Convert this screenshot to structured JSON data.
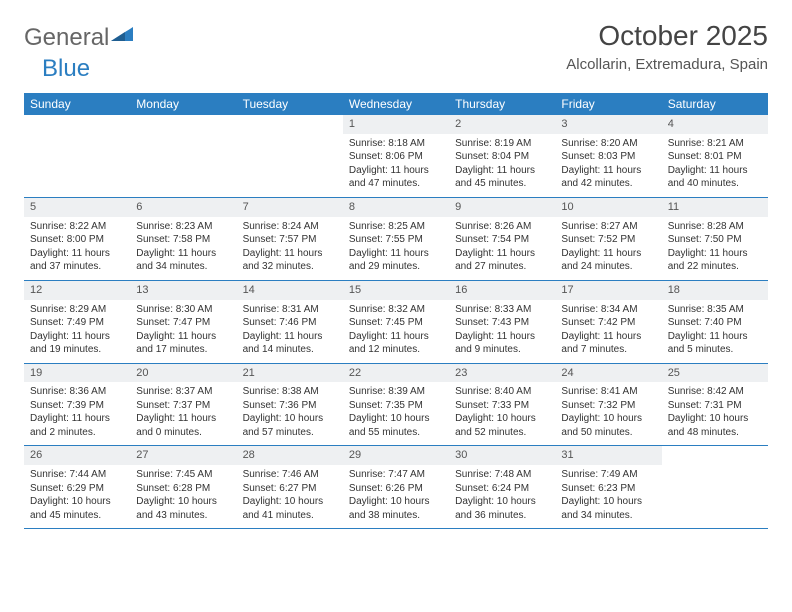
{
  "logo": {
    "part1": "General",
    "part2": "Blue"
  },
  "title": "October 2025",
  "location": "Alcollarin, Extremadura, Spain",
  "colors": {
    "header_bg": "#2b7ec1",
    "header_fg": "#ffffff",
    "daynum_bg": "#eef0f2",
    "row_border": "#2b7ec1",
    "logo_gray": "#666666",
    "logo_blue": "#2b7ec1"
  },
  "day_headers": [
    "Sunday",
    "Monday",
    "Tuesday",
    "Wednesday",
    "Thursday",
    "Friday",
    "Saturday"
  ],
  "weeks": [
    [
      {
        "n": "",
        "lines": []
      },
      {
        "n": "",
        "lines": []
      },
      {
        "n": "",
        "lines": []
      },
      {
        "n": "1",
        "lines": [
          "Sunrise: 8:18 AM",
          "Sunset: 8:06 PM",
          "Daylight: 11 hours",
          "and 47 minutes."
        ]
      },
      {
        "n": "2",
        "lines": [
          "Sunrise: 8:19 AM",
          "Sunset: 8:04 PM",
          "Daylight: 11 hours",
          "and 45 minutes."
        ]
      },
      {
        "n": "3",
        "lines": [
          "Sunrise: 8:20 AM",
          "Sunset: 8:03 PM",
          "Daylight: 11 hours",
          "and 42 minutes."
        ]
      },
      {
        "n": "4",
        "lines": [
          "Sunrise: 8:21 AM",
          "Sunset: 8:01 PM",
          "Daylight: 11 hours",
          "and 40 minutes."
        ]
      }
    ],
    [
      {
        "n": "5",
        "lines": [
          "Sunrise: 8:22 AM",
          "Sunset: 8:00 PM",
          "Daylight: 11 hours",
          "and 37 minutes."
        ]
      },
      {
        "n": "6",
        "lines": [
          "Sunrise: 8:23 AM",
          "Sunset: 7:58 PM",
          "Daylight: 11 hours",
          "and 34 minutes."
        ]
      },
      {
        "n": "7",
        "lines": [
          "Sunrise: 8:24 AM",
          "Sunset: 7:57 PM",
          "Daylight: 11 hours",
          "and 32 minutes."
        ]
      },
      {
        "n": "8",
        "lines": [
          "Sunrise: 8:25 AM",
          "Sunset: 7:55 PM",
          "Daylight: 11 hours",
          "and 29 minutes."
        ]
      },
      {
        "n": "9",
        "lines": [
          "Sunrise: 8:26 AM",
          "Sunset: 7:54 PM",
          "Daylight: 11 hours",
          "and 27 minutes."
        ]
      },
      {
        "n": "10",
        "lines": [
          "Sunrise: 8:27 AM",
          "Sunset: 7:52 PM",
          "Daylight: 11 hours",
          "and 24 minutes."
        ]
      },
      {
        "n": "11",
        "lines": [
          "Sunrise: 8:28 AM",
          "Sunset: 7:50 PM",
          "Daylight: 11 hours",
          "and 22 minutes."
        ]
      }
    ],
    [
      {
        "n": "12",
        "lines": [
          "Sunrise: 8:29 AM",
          "Sunset: 7:49 PM",
          "Daylight: 11 hours",
          "and 19 minutes."
        ]
      },
      {
        "n": "13",
        "lines": [
          "Sunrise: 8:30 AM",
          "Sunset: 7:47 PM",
          "Daylight: 11 hours",
          "and 17 minutes."
        ]
      },
      {
        "n": "14",
        "lines": [
          "Sunrise: 8:31 AM",
          "Sunset: 7:46 PM",
          "Daylight: 11 hours",
          "and 14 minutes."
        ]
      },
      {
        "n": "15",
        "lines": [
          "Sunrise: 8:32 AM",
          "Sunset: 7:45 PM",
          "Daylight: 11 hours",
          "and 12 minutes."
        ]
      },
      {
        "n": "16",
        "lines": [
          "Sunrise: 8:33 AM",
          "Sunset: 7:43 PM",
          "Daylight: 11 hours",
          "and 9 minutes."
        ]
      },
      {
        "n": "17",
        "lines": [
          "Sunrise: 8:34 AM",
          "Sunset: 7:42 PM",
          "Daylight: 11 hours",
          "and 7 minutes."
        ]
      },
      {
        "n": "18",
        "lines": [
          "Sunrise: 8:35 AM",
          "Sunset: 7:40 PM",
          "Daylight: 11 hours",
          "and 5 minutes."
        ]
      }
    ],
    [
      {
        "n": "19",
        "lines": [
          "Sunrise: 8:36 AM",
          "Sunset: 7:39 PM",
          "Daylight: 11 hours",
          "and 2 minutes."
        ]
      },
      {
        "n": "20",
        "lines": [
          "Sunrise: 8:37 AM",
          "Sunset: 7:37 PM",
          "Daylight: 11 hours",
          "and 0 minutes."
        ]
      },
      {
        "n": "21",
        "lines": [
          "Sunrise: 8:38 AM",
          "Sunset: 7:36 PM",
          "Daylight: 10 hours",
          "and 57 minutes."
        ]
      },
      {
        "n": "22",
        "lines": [
          "Sunrise: 8:39 AM",
          "Sunset: 7:35 PM",
          "Daylight: 10 hours",
          "and 55 minutes."
        ]
      },
      {
        "n": "23",
        "lines": [
          "Sunrise: 8:40 AM",
          "Sunset: 7:33 PM",
          "Daylight: 10 hours",
          "and 52 minutes."
        ]
      },
      {
        "n": "24",
        "lines": [
          "Sunrise: 8:41 AM",
          "Sunset: 7:32 PM",
          "Daylight: 10 hours",
          "and 50 minutes."
        ]
      },
      {
        "n": "25",
        "lines": [
          "Sunrise: 8:42 AM",
          "Sunset: 7:31 PM",
          "Daylight: 10 hours",
          "and 48 minutes."
        ]
      }
    ],
    [
      {
        "n": "26",
        "lines": [
          "Sunrise: 7:44 AM",
          "Sunset: 6:29 PM",
          "Daylight: 10 hours",
          "and 45 minutes."
        ]
      },
      {
        "n": "27",
        "lines": [
          "Sunrise: 7:45 AM",
          "Sunset: 6:28 PM",
          "Daylight: 10 hours",
          "and 43 minutes."
        ]
      },
      {
        "n": "28",
        "lines": [
          "Sunrise: 7:46 AM",
          "Sunset: 6:27 PM",
          "Daylight: 10 hours",
          "and 41 minutes."
        ]
      },
      {
        "n": "29",
        "lines": [
          "Sunrise: 7:47 AM",
          "Sunset: 6:26 PM",
          "Daylight: 10 hours",
          "and 38 minutes."
        ]
      },
      {
        "n": "30",
        "lines": [
          "Sunrise: 7:48 AM",
          "Sunset: 6:24 PM",
          "Daylight: 10 hours",
          "and 36 minutes."
        ]
      },
      {
        "n": "31",
        "lines": [
          "Sunrise: 7:49 AM",
          "Sunset: 6:23 PM",
          "Daylight: 10 hours",
          "and 34 minutes."
        ]
      },
      {
        "n": "",
        "lines": []
      }
    ]
  ]
}
